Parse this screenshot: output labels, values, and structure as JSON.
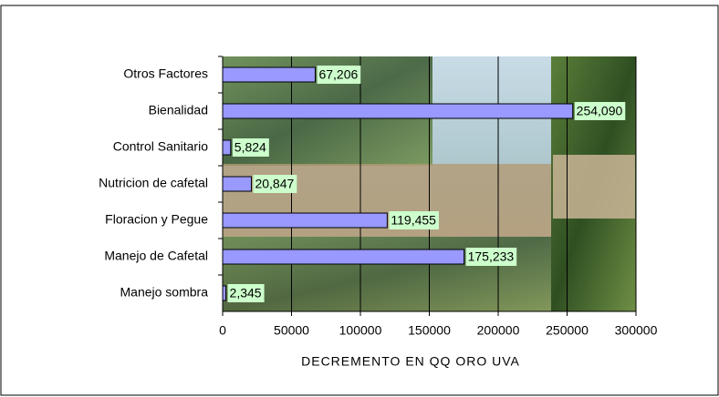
{
  "chart_data": {
    "type": "bar",
    "orientation": "horizontal",
    "categories": [
      "Otros Factores",
      "Bienalidad",
      "Control Sanitario",
      "Nutricion de cafetal",
      "Floracion y Pegue",
      "Manejo de Cafetal",
      "Manejo sombra"
    ],
    "values": [
      67206,
      254090,
      5824,
      20847,
      119455,
      175233,
      2345
    ],
    "value_labels": [
      "67,206",
      "254,090",
      "5,824",
      "20,847",
      "119,455",
      "175,233",
      "2,345"
    ],
    "color": "#9999ff",
    "xlabel": "DECREMENTO EN QQ ORO UVA",
    "xlim": [
      0,
      300000
    ],
    "xticks": [
      0,
      50000,
      100000,
      150000,
      200000,
      250000,
      300000
    ],
    "grid": true
  }
}
